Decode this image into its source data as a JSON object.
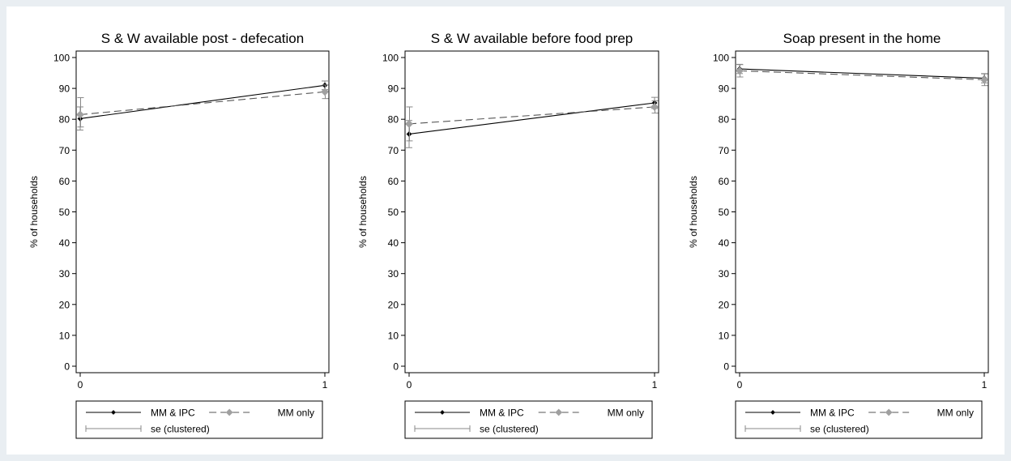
{
  "legend": {
    "series1": "MM & IPC",
    "series2": "MM only",
    "se": "se (clustered)"
  },
  "colors": {
    "series1": "#000000",
    "series2": "#555555",
    "se": "#888888",
    "series2_marker": "#a0a0a0"
  },
  "chart_data": [
    {
      "type": "line",
      "title": "S & W available post - defecation",
      "ylabel": "% of households",
      "xlabel": "",
      "x": [
        0,
        1
      ],
      "xticks": [
        "0",
        "1"
      ],
      "yticks": [
        "0",
        "10",
        "20",
        "30",
        "40",
        "50",
        "60",
        "70",
        "80",
        "90",
        "100"
      ],
      "ylim": [
        0,
        100
      ],
      "grid": false,
      "legend_position": "bottom",
      "series": [
        {
          "name": "MM & IPC",
          "values": [
            80.2,
            91.0
          ],
          "se_low": [
            76.5,
            89.6
          ],
          "se_high": [
            84.0,
            92.4
          ]
        },
        {
          "name": "MM only",
          "values": [
            81.5,
            88.9
          ],
          "se_low": [
            77.5,
            86.7
          ],
          "se_high": [
            87.0,
            91.1
          ]
        }
      ]
    },
    {
      "type": "line",
      "title": "S & W available before food prep",
      "ylabel": "% of households",
      "xlabel": "",
      "x": [
        0,
        1
      ],
      "xticks": [
        "0",
        "1"
      ],
      "yticks": [
        "0",
        "10",
        "20",
        "30",
        "40",
        "50",
        "60",
        "70",
        "80",
        "90",
        "100"
      ],
      "ylim": [
        0,
        100
      ],
      "grid": false,
      "legend_position": "bottom",
      "series": [
        {
          "name": "MM & IPC",
          "values": [
            75.2,
            85.3
          ],
          "se_low": [
            70.8,
            83.5
          ],
          "se_high": [
            79.6,
            87.1
          ]
        },
        {
          "name": "MM only",
          "values": [
            78.5,
            84.0
          ],
          "se_low": [
            73.0,
            82.0
          ],
          "se_high": [
            84.0,
            86.0
          ]
        }
      ]
    },
    {
      "type": "line",
      "title": "Soap present in the home",
      "ylabel": "% of households",
      "xlabel": "",
      "x": [
        0,
        1
      ],
      "xticks": [
        "0",
        "1"
      ],
      "yticks": [
        "0",
        "10",
        "20",
        "30",
        "40",
        "50",
        "60",
        "70",
        "80",
        "90",
        "100"
      ],
      "ylim": [
        0,
        100
      ],
      "grid": false,
      "legend_position": "bottom",
      "series": [
        {
          "name": "MM & IPC",
          "values": [
            96.3,
            93.3
          ],
          "se_low": [
            94.8,
            91.8
          ],
          "se_high": [
            97.8,
            94.8
          ]
        },
        {
          "name": "MM only",
          "values": [
            95.7,
            92.8
          ],
          "se_low": [
            93.7,
            90.9
          ],
          "se_high": [
            97.7,
            94.7
          ]
        }
      ]
    }
  ]
}
